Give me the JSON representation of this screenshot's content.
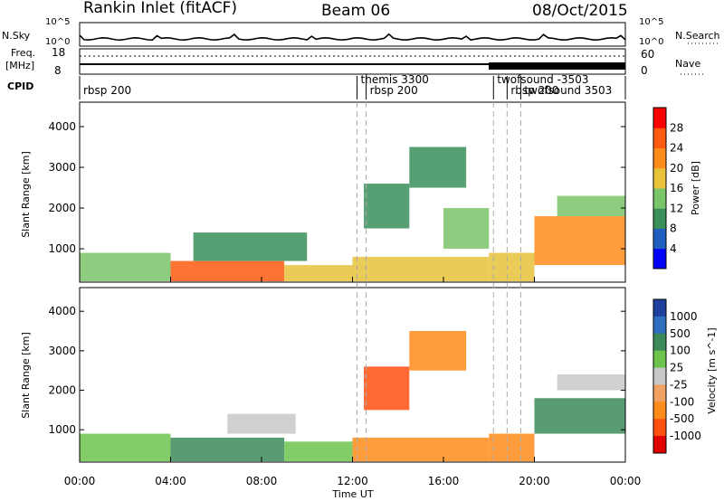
{
  "header": {
    "station": "Rankin Inlet (fitACF)",
    "beam": "Beam 06",
    "date": "08/Oct/2015"
  },
  "top_panel": {
    "left_label": "N.Sky",
    "right_label": "N.Search",
    "left_ticks": [
      "10^5",
      "10^0"
    ],
    "right_ticks": [
      "10^5",
      "10^0"
    ]
  },
  "freq_panel": {
    "left_label_line1": "Freq.",
    "left_label_line2": "[MHz]",
    "left_ticks": [
      "18",
      "8"
    ],
    "right_label": "Nave",
    "right_ticks": [
      "60",
      "0"
    ]
  },
  "cpid_panel": {
    "label": "CPID",
    "programs": [
      {
        "name": "rbsp 200",
        "start_hour": 0.0
      },
      {
        "name": "themis 3300",
        "start_hour": 12.2
      },
      {
        "name": "rbsp 200",
        "start_hour": 12.6
      },
      {
        "name": "twofsound -3503",
        "start_hour": 18.2
      },
      {
        "name": "rbsp 200",
        "start_hour": 18.8
      },
      {
        "name": "twofsound 3503",
        "start_hour": 19.4
      }
    ]
  },
  "colors": {
    "power": [
      "#0000ff",
      "#1f5fbf",
      "#3a8f5a",
      "#7ac46a",
      "#e8c23a",
      "#ff8c1a",
      "#ff5a10",
      "#ff0000"
    ],
    "velocity": [
      "#2040a0",
      "#2e6fbf",
      "#3c8a5a",
      "#6cc44c",
      "#c8c8c8",
      "#f0a060",
      "#ff8c1a",
      "#ff5010",
      "#e00000"
    ]
  },
  "chart_data": [
    {
      "type": "heatmap",
      "title": "",
      "xlabel": "",
      "ylabel": "Slant Range [km]",
      "xlim": [
        0,
        24
      ],
      "ylim": [
        180,
        4600
      ],
      "x_ticks": [
        "00:00",
        "04:00",
        "08:00",
        "12:00",
        "16:00",
        "20:00",
        "00:00"
      ],
      "y_ticks": [
        1000,
        2000,
        3000,
        4000
      ],
      "colorbar_label": "Power [dB]",
      "colorbar_ticks": [
        4,
        8,
        12,
        16,
        20,
        24,
        28
      ],
      "colorbar_range": [
        0,
        32
      ],
      "regions": [
        {
          "x0": 0.0,
          "x1": 4.0,
          "y0": 200,
          "y1": 900,
          "value": 14
        },
        {
          "x0": 4.0,
          "x1": 9.0,
          "y0": 200,
          "y1": 700,
          "value": 26
        },
        {
          "x0": 5.0,
          "x1": 10.0,
          "y0": 700,
          "y1": 1400,
          "value": 10
        },
        {
          "x0": 9.0,
          "x1": 12.0,
          "y0": 200,
          "y1": 600,
          "value": 16
        },
        {
          "x0": 12.0,
          "x1": 18.0,
          "y0": 200,
          "y1": 800,
          "value": 18
        },
        {
          "x0": 12.5,
          "x1": 14.5,
          "y0": 1500,
          "y1": 2600,
          "value": 9
        },
        {
          "x0": 14.5,
          "x1": 17.0,
          "y0": 2500,
          "y1": 3500,
          "value": 8
        },
        {
          "x0": 16.0,
          "x1": 18.0,
          "y0": 1000,
          "y1": 2000,
          "value": 15
        },
        {
          "x0": 18.0,
          "x1": 20.0,
          "y0": 200,
          "y1": 900,
          "value": 17
        },
        {
          "x0": 20.0,
          "x1": 24.0,
          "y0": 600,
          "y1": 1800,
          "value": 21
        },
        {
          "x0": 21.0,
          "x1": 24.0,
          "y0": 1800,
          "y1": 2300,
          "value": 14
        }
      ]
    },
    {
      "type": "heatmap",
      "title": "",
      "xlabel": "Time UT",
      "ylabel": "Slant Range [km]",
      "xlim": [
        0,
        24
      ],
      "ylim": [
        180,
        4600
      ],
      "x_ticks": [
        "00:00",
        "04:00",
        "08:00",
        "12:00",
        "16:00",
        "20:00",
        "00:00"
      ],
      "y_ticks": [
        1000,
        2000,
        3000,
        4000
      ],
      "colorbar_label": "Velocity [m s^-1]",
      "colorbar_ticks": [
        "1000",
        "500",
        "100",
        "25",
        "-25",
        "-100",
        "-500",
        "-1000"
      ],
      "regions": [
        {
          "x0": 0.0,
          "x1": 4.0,
          "y0": 200,
          "y1": 900,
          "value": 100
        },
        {
          "x0": 4.0,
          "x1": 9.0,
          "y0": 200,
          "y1": 800,
          "value": 300
        },
        {
          "x0": 6.5,
          "x1": 9.5,
          "y0": 900,
          "y1": 1400,
          "value": 0
        },
        {
          "x0": 9.0,
          "x1": 12.0,
          "y0": 200,
          "y1": 700,
          "value": 80
        },
        {
          "x0": 12.0,
          "x1": 18.0,
          "y0": 200,
          "y1": 800,
          "value": -400
        },
        {
          "x0": 12.5,
          "x1": 14.5,
          "y0": 1500,
          "y1": 2600,
          "value": -600
        },
        {
          "x0": 14.5,
          "x1": 17.0,
          "y0": 2500,
          "y1": 3500,
          "value": -300
        },
        {
          "x0": 18.0,
          "x1": 20.0,
          "y0": 200,
          "y1": 900,
          "value": -200
        },
        {
          "x0": 20.0,
          "x1": 24.0,
          "y0": 900,
          "y1": 1800,
          "value": 150
        },
        {
          "x0": 21.0,
          "x1": 24.0,
          "y0": 2000,
          "y1": 2400,
          "value": 0
        }
      ]
    }
  ]
}
